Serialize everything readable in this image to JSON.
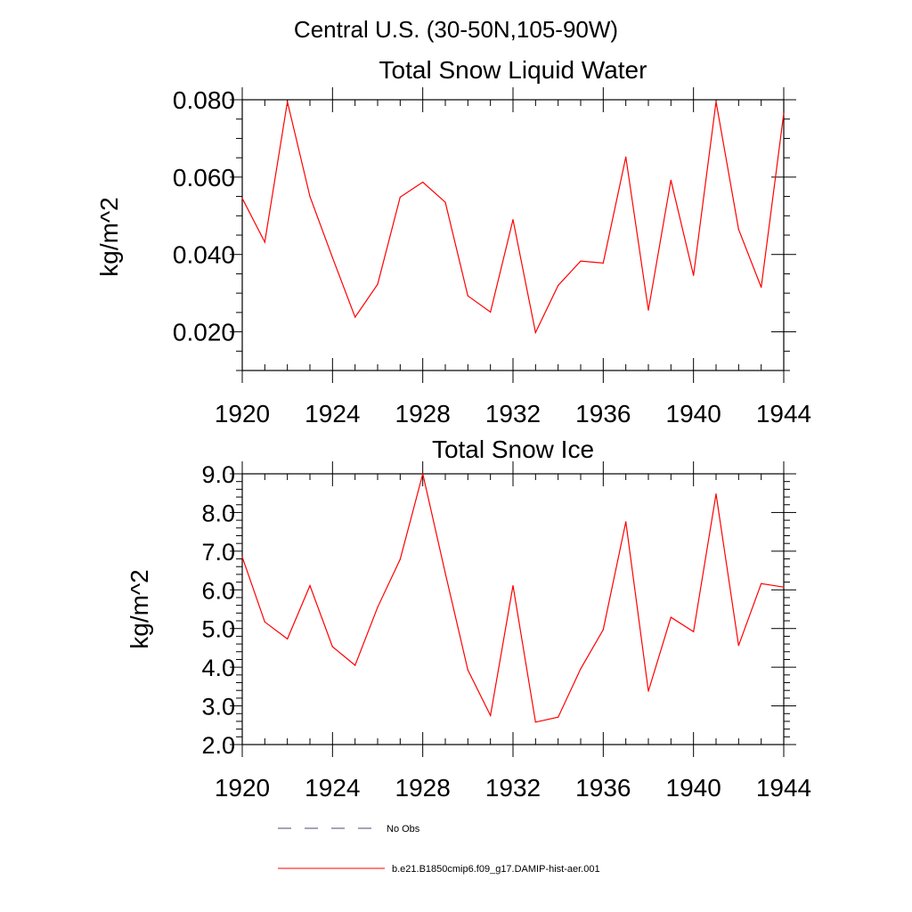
{
  "figure": {
    "title": "Central U.S. (30-50N,105-90W)"
  },
  "legend": {
    "entries": [
      {
        "label": "No Obs",
        "style": "dashed",
        "color": "#4a4a7a"
      },
      {
        "label": "b.e21.B1850cmip6.f09_g17.DAMIP-hist-aer.001",
        "style": "solid",
        "color": "#ff0000"
      }
    ]
  },
  "chart_data": [
    {
      "type": "line",
      "title": "Total Snow Liquid Water",
      "xlabel": "",
      "ylabel": "kg/m^2",
      "xlim": [
        1920,
        1944
      ],
      "ylim": [
        0.01,
        0.08
      ],
      "xticks": [
        "1920",
        "1924",
        "1928",
        "1932",
        "1936",
        "1940",
        "1944"
      ],
      "yticks": [
        "0.020",
        "0.040",
        "0.060",
        "0.080"
      ],
      "grid": false,
      "x": [
        1920,
        1921,
        1922,
        1923,
        1924,
        1925,
        1926,
        1927,
        1928,
        1929,
        1930,
        1931,
        1932,
        1933,
        1934,
        1935,
        1936,
        1937,
        1938,
        1939,
        1940,
        1941,
        1942,
        1943,
        1944
      ],
      "series": [
        {
          "color": "#ff0000",
          "values": [
            0.0545,
            0.0432,
            0.0795,
            0.055,
            0.0392,
            0.0238,
            0.0323,
            0.0548,
            0.0587,
            0.0535,
            0.0293,
            0.0251,
            0.049,
            0.0198,
            0.032,
            0.0383,
            0.0378,
            0.0652,
            0.0256,
            0.0592,
            0.0346,
            0.0795,
            0.0465,
            0.0315,
            0.0765
          ]
        }
      ]
    },
    {
      "type": "line",
      "title": "Total Snow Ice",
      "xlabel": "",
      "ylabel": "kg/m^2",
      "xlim": [
        1920,
        1944
      ],
      "ylim": [
        2.0,
        9.0
      ],
      "xticks": [
        "1920",
        "1924",
        "1928",
        "1932",
        "1936",
        "1940",
        "1944"
      ],
      "yticks": [
        "2.0",
        "3.0",
        "4.0",
        "5.0",
        "6.0",
        "7.0",
        "8.0",
        "9.0"
      ],
      "grid": false,
      "x": [
        1920,
        1921,
        1922,
        1923,
        1924,
        1925,
        1926,
        1927,
        1928,
        1929,
        1930,
        1931,
        1932,
        1933,
        1934,
        1935,
        1936,
        1937,
        1938,
        1939,
        1940,
        1941,
        1942,
        1943,
        1944
      ],
      "series": [
        {
          "color": "#ff0000",
          "values": [
            6.85,
            5.17,
            4.73,
            6.11,
            4.53,
            4.05,
            5.55,
            6.79,
            9.0,
            6.43,
            3.93,
            2.75,
            6.11,
            2.58,
            2.71,
            3.96,
            4.97,
            7.76,
            3.38,
            5.29,
            4.92,
            8.48,
            4.56,
            6.16,
            6.07
          ]
        }
      ]
    }
  ]
}
